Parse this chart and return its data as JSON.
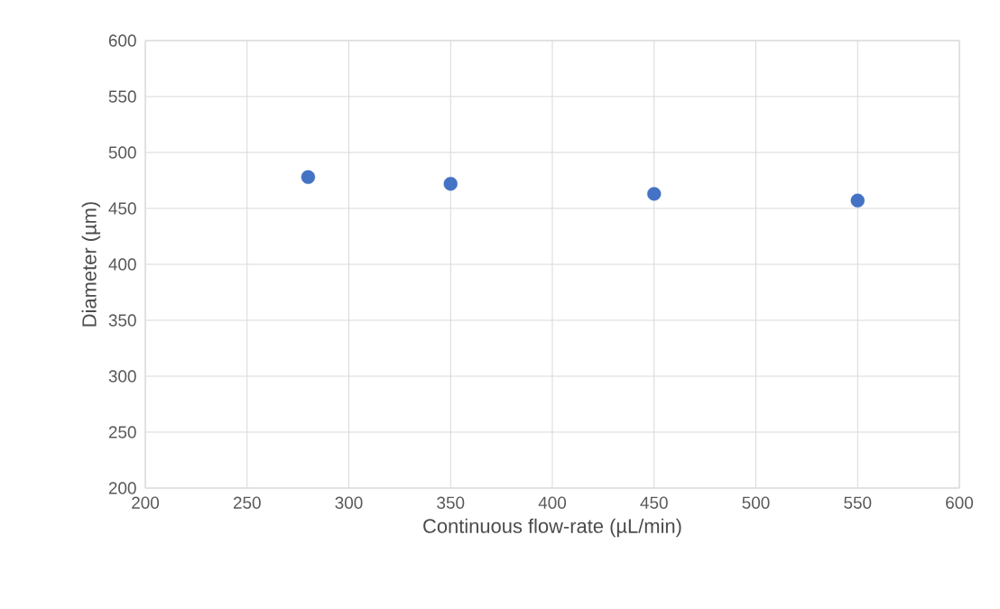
{
  "chart_data": {
    "type": "scatter",
    "xlabel": "Continuous flow-rate (µL/min)",
    "ylabel": "Diameter (µm)",
    "x": [
      280,
      350,
      450,
      550
    ],
    "series": [
      {
        "color": "#4472c4",
        "values": [
          478,
          472,
          463,
          457
        ]
      }
    ],
    "xlim": [
      200,
      600
    ],
    "xticks": [
      200,
      250,
      300,
      350,
      400,
      450,
      500,
      550,
      600
    ],
    "ylim": [
      200,
      600
    ],
    "yticks": [
      200,
      250,
      300,
      350,
      400,
      450,
      500,
      550,
      600
    ],
    "grid": true,
    "marker": "circle"
  }
}
